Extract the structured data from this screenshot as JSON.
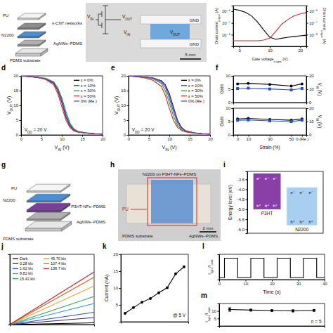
{
  "chart_data": [
    {
      "type": "line",
      "log": "y",
      "x_label": [
        "Gate voltage",
        {
          "sub": "n-type"
        },
        " (V)"
      ],
      "y_label": [
        "Drain current",
        {
          "sub": "p-type"
        },
        " (A)"
      ],
      "y2_label": [
        "Drain current",
        {
          "sub": "n-type"
        },
        " (A)"
      ],
      "xlim": [
        -2,
        22
      ],
      "xticks": [
        0,
        10,
        20
      ],
      "ylim": [
        1e-09,
        3e-06
      ],
      "yticks": [
        {
          "value": 1e-08,
          "label": "10⁻⁸"
        },
        {
          "value": 1e-07,
          "label": "10⁻⁷"
        },
        {
          "value": 1e-06,
          "label": "10⁻⁶"
        }
      ],
      "y2lim": [
        1e-09,
        3e-06
      ],
      "y2ticks": [
        {
          "value": 1e-08,
          "label": "10⁻⁸"
        },
        {
          "value": 1e-07,
          "label": "10⁻⁷"
        },
        {
          "value": 1e-06,
          "label": "10⁻⁶"
        }
      ],
      "x": [
        -2,
        0,
        2,
        4,
        6,
        8,
        10,
        12,
        14,
        16,
        18,
        20,
        22
      ],
      "series": [
        {
          "color": "#000000",
          "values": [
            1.5e-06,
            1.2e-06,
            8e-07,
            4e-07,
            1.2e-07,
            2.5e-08,
            6e-09,
            4e-09,
            5e-09,
            6e-09,
            7e-09,
            8e-09,
            9e-09
          ]
        },
        {
          "color": "#d62728",
          "axis": "y2",
          "values": [
            3e-09,
            3e-09,
            3e-09,
            3e-09,
            3e-09,
            3.5e-09,
            5e-09,
            2e-08,
            8e-08,
            2e-07,
            4e-07,
            6e-07,
            8e-07
          ]
        }
      ]
    },
    {
      "type": "line",
      "panel": "d",
      "legend": "upper right",
      "x_label": [
        "V",
        {
          "sub": "IN"
        },
        " (V)"
      ],
      "y_label": [
        "V",
        {
          "sub": "OUT"
        },
        " (V)"
      ],
      "annotation": [
        "V",
        {
          "sub": "DD"
        },
        " = 20 V"
      ],
      "xlim": [
        0,
        20
      ],
      "xticks": [
        0,
        5,
        10,
        15,
        20
      ],
      "ylim": [
        0,
        20
      ],
      "yticks": [
        0,
        5,
        10,
        15,
        20
      ],
      "x": [
        0,
        2,
        4,
        6,
        8,
        9,
        10,
        11,
        12,
        13,
        14,
        16,
        18,
        20
      ],
      "series": [
        {
          "name": "ε = 0%",
          "color": "#000000",
          "values": [
            20,
            19.8,
            19.5,
            19,
            17.5,
            15,
            11,
            6,
            3,
            1.5,
            1,
            0.6,
            0.4,
            0.3
          ]
        },
        {
          "name": "ε = 10%",
          "color": "#1f4fd8",
          "values": [
            20,
            19.8,
            19.5,
            19,
            17.8,
            15.5,
            12,
            7,
            3.5,
            1.8,
            1.1,
            0.7,
            0.4,
            0.3
          ]
        },
        {
          "name": "ε = 30%",
          "color": "#2a9d3a",
          "values": [
            20,
            19.8,
            19.6,
            19.2,
            18,
            16,
            12.5,
            8,
            4,
            2,
            1.2,
            0.7,
            0.4,
            0.3
          ]
        },
        {
          "name": "ε = 50%",
          "color": "#d62728",
          "values": [
            20,
            19.8,
            19.5,
            18.8,
            17,
            14,
            9.5,
            5,
            2.5,
            1.3,
            0.9,
            0.6,
            0.4,
            0.3
          ]
        },
        {
          "name": "0% (Re.)",
          "color": "#7b3fa0",
          "values": [
            20,
            19.8,
            19.5,
            19,
            17.6,
            15.2,
            11.2,
            6.2,
            3.1,
            1.6,
            1,
            0.6,
            0.4,
            0.3
          ]
        }
      ]
    },
    {
      "type": "line",
      "panel": "e",
      "legend": "upper right",
      "x_label": [
        "V",
        {
          "sub": "IN"
        },
        " (V)"
      ],
      "y_label": [
        "V",
        {
          "sub": "OUT"
        },
        " (V)"
      ],
      "annotation": [
        "V",
        {
          "sub": "DD"
        },
        " = 20 V"
      ],
      "xlim": [
        0,
        20
      ],
      "xticks": [
        0,
        5,
        10,
        15,
        20
      ],
      "ylim": [
        0,
        20
      ],
      "yticks": [
        0,
        5,
        10,
        15,
        20
      ],
      "x": [
        0,
        2,
        4,
        6,
        8,
        9,
        10,
        11,
        12,
        13,
        14,
        16,
        18,
        20
      ],
      "series": [
        {
          "name": "ε = 0%",
          "color": "#000000",
          "values": [
            20,
            19.8,
            19.6,
            19.3,
            18.4,
            17,
            14,
            9.5,
            5,
            2.5,
            1.4,
            0.7,
            0.4,
            0.3
          ]
        },
        {
          "name": "ε = 10%",
          "color": "#1f4fd8",
          "values": [
            20,
            19.8,
            19.6,
            19.2,
            18,
            16.2,
            12.5,
            8,
            4.2,
            2.2,
            1.3,
            0.7,
            0.4,
            0.3
          ]
        },
        {
          "name": "ε = 30%",
          "color": "#2a9d3a",
          "values": [
            20,
            19.8,
            19.5,
            19,
            17.5,
            15,
            11,
            6.5,
            3.3,
            1.8,
            1.1,
            0.6,
            0.4,
            0.3
          ]
        },
        {
          "name": "ε = 50%",
          "color": "#d62728",
          "values": [
            20,
            19.7,
            19.3,
            18.5,
            16.5,
            13.5,
            9,
            5,
            2.6,
            1.5,
            1,
            0.6,
            0.4,
            0.3
          ]
        },
        {
          "name": "0% (Re.)",
          "color": "#7b3fa0",
          "values": [
            20,
            19.8,
            19.6,
            19.3,
            18.3,
            16.8,
            13.6,
            9,
            4.8,
            2.4,
            1.3,
            0.7,
            0.4,
            0.3
          ]
        }
      ]
    },
    {
      "type": "line",
      "panel": "f",
      "y_label": "Gain",
      "y2_label": [
        "V",
        {
          "sub": "M"
        },
        " (V)"
      ],
      "xlim": [
        -4,
        64
      ],
      "ylim": [
        0,
        10
      ],
      "yticks": [
        0,
        5,
        10
      ],
      "y2lim": [
        0,
        20
      ],
      "y2ticks": [
        0,
        10,
        20
      ],
      "x": [
        0,
        10,
        30,
        50,
        60
      ],
      "series": [
        {
          "color": "#000000",
          "marker": "circle",
          "values": [
            7,
            7.2,
            6.8,
            6.2,
            7
          ]
        },
        {
          "color": "#1f4fd8",
          "marker": "square",
          "axis": "y2",
          "values": [
            10.5,
            10.8,
            10.2,
            9.5,
            10.5
          ]
        }
      ]
    },
    {
      "type": "line",
      "x_label": "Strain (%)",
      "y_label": "Gain",
      "y2_label": [
        "V",
        {
          "sub": "M"
        },
        " (V)"
      ],
      "xlim": [
        -4,
        64
      ],
      "xticks": [
        0,
        10,
        30,
        50,
        {
          "value": 60,
          "label": "0 (Re.)"
        }
      ],
      "ylim": [
        0,
        10
      ],
      "yticks": [
        0,
        5,
        10
      ],
      "y2lim": [
        0,
        20
      ],
      "y2ticks": [
        0,
        10,
        20
      ],
      "x": [
        0,
        10,
        30,
        50,
        60
      ],
      "series": [
        {
          "color": "#000000",
          "marker": "circle",
          "values": [
            6,
            6.2,
            5.8,
            5.5,
            6
          ]
        },
        {
          "color": "#1f4fd8",
          "marker": "square",
          "axis": "y2",
          "values": [
            11,
            11.2,
            10.5,
            10,
            11
          ]
        }
      ]
    },
    {
      "type": "line",
      "panel": "j",
      "tick_labels": false,
      "legend": "upper left",
      "xlim": [
        0,
        5
      ],
      "ylim": [
        0,
        20
      ],
      "x": [
        0,
        5
      ],
      "series": [
        {
          "name": "Dark",
          "color": "#000000",
          "values": [
            0,
            0.5
          ]
        },
        {
          "name": "0.28 klx",
          "color": "#3b1f7a",
          "values": [
            0,
            2
          ]
        },
        {
          "name": "1.62 klx",
          "color": "#2450c8",
          "values": [
            0,
            3.5
          ]
        },
        {
          "name": "8.82 klx",
          "color": "#1fa3c4",
          "values": [
            0,
            6
          ]
        },
        {
          "name": "15.42 klx",
          "color": "#33a04a",
          "values": [
            0,
            8
          ]
        },
        {
          "name": "45.70 klx",
          "color": "#e0a21a",
          "values": [
            0,
            11
          ]
        },
        {
          "name": "107.4 klx",
          "color": "#e0622b",
          "values": [
            0,
            13.5
          ]
        },
        {
          "name": "138.7 klx",
          "color": "#c7262a",
          "values": [
            0,
            15
          ]
        }
      ]
    },
    {
      "type": "line",
      "panel": "k",
      "tick_labels": "y",
      "y_label": "Current (nA)",
      "annotation": "@ 5 V",
      "categories": [
        null,
        null,
        null,
        null,
        null,
        null,
        null,
        null
      ],
      "ylim": [
        0,
        20
      ],
      "yticks": [
        5,
        10,
        15,
        20
      ],
      "series": [
        {
          "color": "#000000",
          "marker": "circle",
          "values": [
            2.5,
            4.2,
            5.8,
            6.9,
            8.6,
            10.1,
            14.2,
            16.3
          ]
        }
      ]
    },
    {
      "type": "line",
      "panel": "l",
      "tick_labels": "x",
      "x_label": "Time (s)",
      "y_label": [
        "I",
        {
          "sub": "light"
        },
        "/I",
        {
          "sub": "dark"
        }
      ],
      "xlim": [
        0,
        40
      ],
      "xticks": [
        0,
        10,
        20,
        30,
        40
      ],
      "ylim": [
        0,
        13
      ],
      "x": [
        0,
        2,
        2,
        7,
        7,
        12,
        12,
        17,
        17,
        22,
        22,
        27,
        27,
        32,
        32,
        37,
        37,
        40
      ],
      "series": [
        {
          "color": "#000000",
          "values": [
            1,
            1,
            11,
            11,
            1,
            1,
            11,
            11,
            1,
            1,
            11,
            11,
            1,
            1,
            11,
            11,
            1,
            1
          ]
        }
      ]
    },
    {
      "type": "line",
      "panel": "m",
      "tick_labels": "y",
      "y_label": [
        "I",
        {
          "sub": "light"
        },
        "/I",
        {
          "sub": "dark"
        }
      ],
      "annotation": "n = 5",
      "categories": [
        null,
        null,
        null,
        null,
        null
      ],
      "ylim": [
        0,
        15
      ],
      "yticks": [
        5,
        10
      ],
      "series": [
        {
          "color": "#000000",
          "marker": "circle",
          "values": [
            11,
            10.6,
            10.3,
            10.1,
            10.4
          ],
          "errors": [
            1.2,
            0.6,
            0.5,
            0.7,
            0.6
          ]
        }
      ]
    }
  ],
  "panels": {
    "a": {
      "labels": {
        "pu": "PU",
        "cnt": "s-CNT networks",
        "n2200": "N2200",
        "agnw": "AgNWs–PDMS",
        "substrate": "PDMS substrate"
      }
    },
    "b": {
      "circuit_labels": {
        "vin": [
          "V",
          {
            "sub": "IN"
          }
        ],
        "vout": [
          "V",
          {
            "sub": "OUT"
          }
        ]
      },
      "photo_labels": {
        "vin": [
          "V",
          {
            "sub": "IN"
          }
        ],
        "vout": [
          "V",
          {
            "sub": "OUT"
          }
        ],
        "gnd_top": "GND",
        "gnd_bottom": "GND"
      },
      "scale_bar": "5 mm"
    },
    "g": {
      "panel": "g",
      "labels": {
        "pu": "PU",
        "n2200": "N2200",
        "p3ht": "P3HT-NFs–PDMS",
        "agnw": "AgNWs–PDMS",
        "substrate": "PDMS substrate"
      }
    },
    "h": {
      "panel": "h",
      "labels": {
        "device": "N2200 on P3HT-NFs–PDMS",
        "pu": "PU",
        "substrate": "PDMS substrate",
        "agnw": "AgNWs–PDMS"
      },
      "scale_bar": "2 mm"
    },
    "i": {
      "panel": "i",
      "y_label": "Energy level (eV)",
      "ylim": [
        -6.2,
        -3.1
      ],
      "yticks": [
        -3.5,
        {
          "value": -4,
          "label": "-4.0"
        },
        -4.5,
        {
          "value": -5,
          "label": "-5.0"
        },
        -5.5,
        {
          "value": -6,
          "label": "-6.0"
        }
      ],
      "materials": [
        {
          "name": "P3HT",
          "lumo": -3.2,
          "homo": -5.0,
          "color": "#8a3ea8"
        },
        {
          "name": "N2200",
          "lumo": -3.9,
          "homo": -5.8,
          "color": "#a8cff0"
        }
      ],
      "electron": "e⁻",
      "hole": "h⁺"
    }
  }
}
